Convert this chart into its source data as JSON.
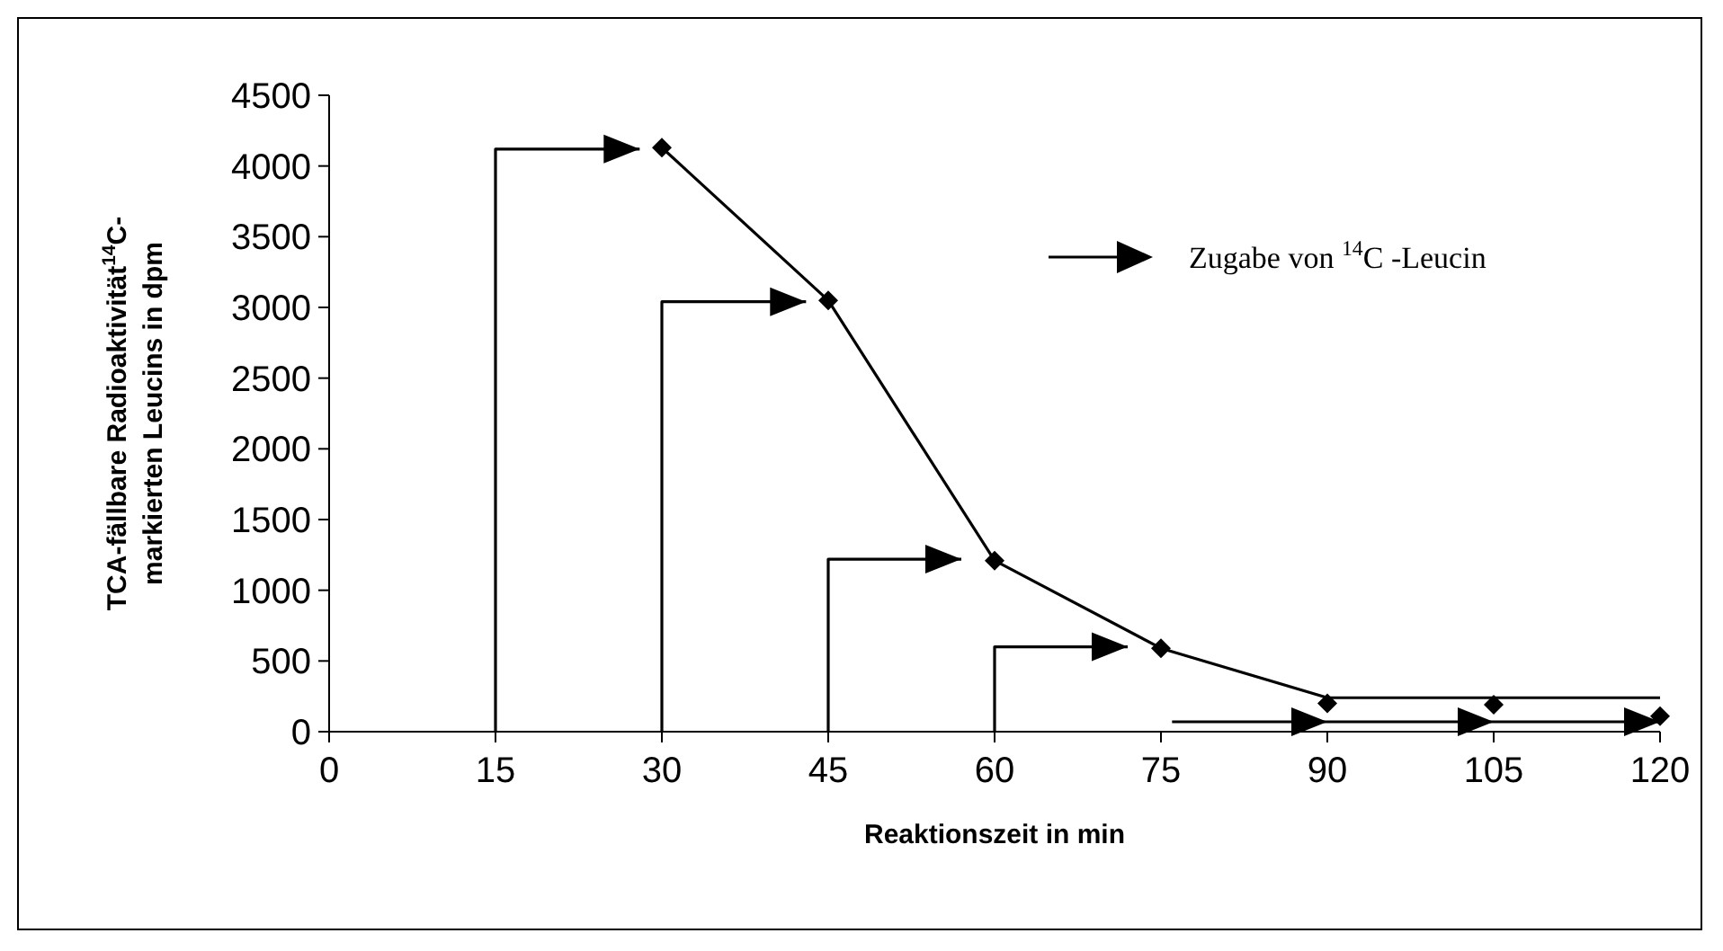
{
  "chart_data": {
    "type": "line",
    "xlabel": "Reaktionszeit in min",
    "ylabel": "TCA-fällbare Radioaktivität$^{14}$C-\nmarkierten Leucins in dpm",
    "xlim": [
      0,
      120
    ],
    "xticks": [
      0,
      15,
      30,
      45,
      60,
      75,
      90,
      105,
      120
    ],
    "ylim": [
      0,
      4500
    ],
    "yticks": [
      0,
      500,
      1000,
      1500,
      2000,
      2500,
      3000,
      3500,
      4000,
      4500
    ],
    "legend": "top right",
    "series": [
      {
        "color": "#000000",
        "marker": "none",
        "x": [
          30,
          45,
          60,
          75,
          90,
          120
        ],
        "values": [
          4130,
          3050,
          1210,
          590,
          240,
          240
        ]
      },
      {
        "type": "scatter",
        "color": "#000000",
        "marker": "diamond",
        "x": [
          30,
          45,
          60,
          75,
          90,
          105,
          120
        ],
        "values": [
          4130,
          3050,
          1210,
          590,
          200,
          190,
          110
        ]
      },
      {
        "name": "Zugabe von $^{14}$C -Leucin",
        "color": "#000000",
        "x": [
          15,
          15,
          28,
          null,
          30,
          30,
          43,
          null,
          45,
          45,
          57,
          null,
          60,
          60,
          72,
          null,
          76,
          90,
          null,
          90,
          105,
          null,
          105,
          120
        ],
        "values": [
          0,
          4120,
          4120,
          null,
          0,
          3040,
          3040,
          null,
          0,
          1220,
          1220,
          null,
          0,
          600,
          600,
          null,
          70,
          70,
          null,
          70,
          70,
          null,
          70,
          70
        ]
      }
    ]
  }
}
